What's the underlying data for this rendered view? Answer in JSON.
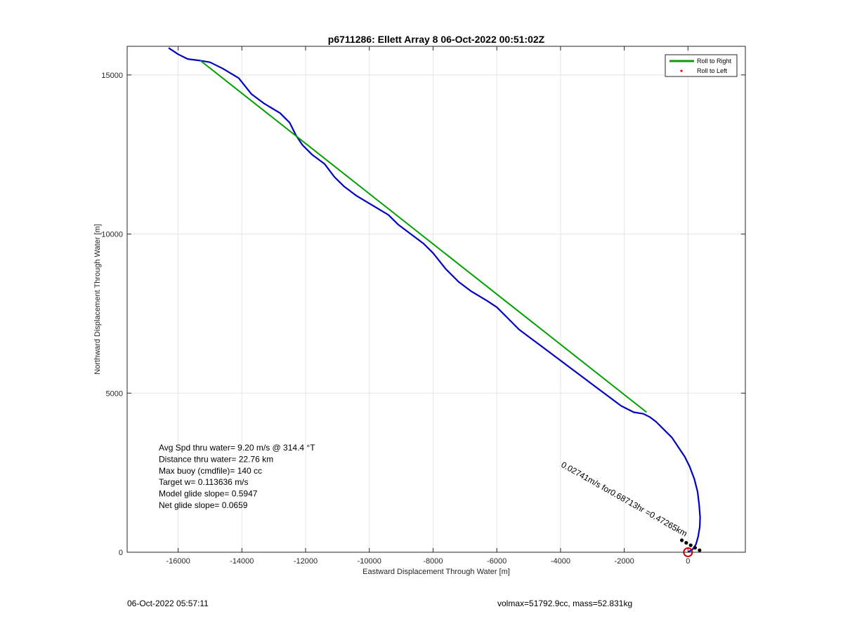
{
  "chart_data": {
    "type": "line",
    "title": "p6711286: Ellett Array 8 06-Oct-2022 00:51:02Z",
    "xlabel": "Eastward Displacement Through Water [m]",
    "ylabel": "Northward Displacement Through Water [m]",
    "xlim": [
      -17600,
      1800
    ],
    "ylim": [
      0,
      15900
    ],
    "xticks": [
      -16000,
      -14000,
      -12000,
      -10000,
      -8000,
      -6000,
      -4000,
      -2000,
      0
    ],
    "yticks": [
      0,
      5000,
      10000,
      15000
    ],
    "grid": true,
    "legend_position": "top-right",
    "legend": [
      {
        "label": "Roll to Right",
        "color": "#00a000",
        "style": "line"
      },
      {
        "label": "Roll to Left",
        "color": "#ff0000",
        "style": "dot"
      }
    ],
    "series": [
      {
        "color": "#0000c0",
        "x": [
          -16300,
          -16000,
          -15700,
          -15300,
          -15000,
          -14600,
          -14100,
          -13700,
          -13300,
          -12800,
          -12500,
          -12300,
          -12100,
          -11800,
          -11400,
          -11100,
          -10800,
          -10400,
          -9900,
          -9400,
          -9100,
          -8700,
          -8300,
          -8000,
          -7600,
          -7200,
          -6800,
          -6300,
          -6000,
          -5700,
          -5300,
          -4900,
          -4500,
          -4100,
          -3700,
          -3300,
          -2900,
          -2500,
          -2100,
          -1700,
          -1400,
          -1200,
          -1000,
          -800,
          -500,
          -300,
          -100,
          50,
          200,
          300,
          350,
          380,
          370,
          320,
          250,
          150,
          50,
          0
        ],
        "y": [
          15850,
          15650,
          15500,
          15450,
          15400,
          15200,
          14900,
          14400,
          14100,
          13800,
          13500,
          13100,
          12800,
          12500,
          12200,
          11800,
          11500,
          11200,
          10900,
          10600,
          10300,
          10000,
          9700,
          9400,
          8900,
          8500,
          8200,
          7900,
          7700,
          7400,
          7000,
          6700,
          6400,
          6100,
          5800,
          5500,
          5200,
          4900,
          4600,
          4400,
          4350,
          4250,
          4100,
          3900,
          3600,
          3300,
          3000,
          2700,
          2300,
          1900,
          1500,
          1100,
          800,
          500,
          250,
          100,
          30,
          0
        ]
      },
      {
        "color": "#00a000",
        "x": [
          -15300,
          -1300
        ],
        "y": [
          15450,
          4400
        ]
      }
    ],
    "annotations": [
      {
        "text": "0.02741m/s for0.68713hr =0.47265km",
        "x": -4000,
        "y": 2700,
        "rotation": 29.5
      },
      {
        "text": "●●●●●",
        "x": -300,
        "y": 350,
        "rotation": 29.5
      }
    ],
    "marker": {
      "x": 0,
      "y": 0,
      "color": "#d00000"
    },
    "info": [
      "Avg Spd thru water=  9.20 m/s @ 314.4 °T",
      "Distance thru water= 22.76 km",
      "Max buoy (cmdfile)= 140 cc",
      "Target w= 0.113636 m/s",
      "Model glide slope= 0.5947",
      "Net glide slope= 0.0659"
    ]
  },
  "footer": {
    "left": "06-Oct-2022 05:57:11",
    "right": "volmax=51792.9cc, mass=52.831kg"
  }
}
